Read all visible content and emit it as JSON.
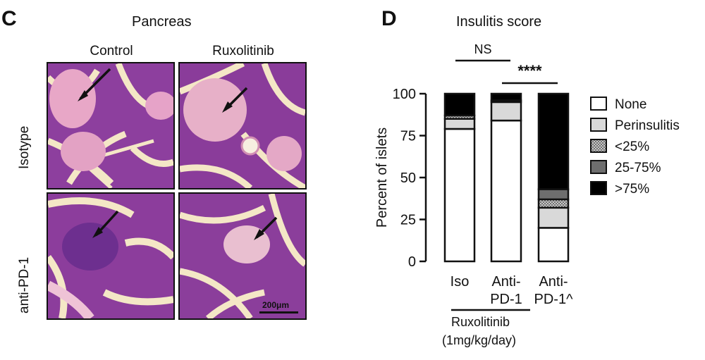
{
  "panel_c": {
    "letter": "C",
    "title": "Pancreas",
    "columns": [
      "Control",
      "Ruxolitinib"
    ],
    "rows": [
      "Isotype",
      "anti-PD-1"
    ],
    "scale_bar": "200μm"
  },
  "panel_d": {
    "letter": "D",
    "title": "Insulitis score",
    "treatment_label_line1": "Ruxolitinib",
    "treatment_label_line2": "(1mg/kg/day)"
  },
  "chart_data": {
    "type": "bar",
    "stacked": true,
    "title": "Insulitis score",
    "ylabel": "Percent of islets",
    "xlabel": "",
    "ylim": [
      0,
      100
    ],
    "yticks": [
      0,
      25,
      50,
      75,
      100
    ],
    "categories": [
      "Iso",
      "Anti-PD-1",
      "Anti-PD-1^"
    ],
    "category_lines": [
      [
        "Iso"
      ],
      [
        "Anti-",
        "PD-1"
      ],
      [
        "Anti-",
        "PD-1^"
      ]
    ],
    "series": [
      {
        "name": "None",
        "color": "#ffffff",
        "pattern": "solid",
        "values": [
          79,
          84,
          20
        ]
      },
      {
        "name": "Perinsulitis",
        "color": "#d9d9d9",
        "pattern": "solid",
        "values": [
          6,
          11,
          12
        ]
      },
      {
        "name": "<25%",
        "color": "#a0a0a0",
        "pattern": "dots",
        "values": [
          2,
          0,
          5
        ]
      },
      {
        "name": "25-75%",
        "color": "#6e6e6e",
        "pattern": "solid",
        "values": [
          0,
          1,
          6
        ]
      },
      {
        "name": ">75%",
        "color": "#000000",
        "pattern": "solid",
        "values": [
          13,
          4,
          57
        ]
      }
    ],
    "significance": [
      {
        "label": "NS",
        "from": 0,
        "to": 1
      },
      {
        "label": "****",
        "from": 1,
        "to": 2
      }
    ],
    "legend_position": "right"
  }
}
